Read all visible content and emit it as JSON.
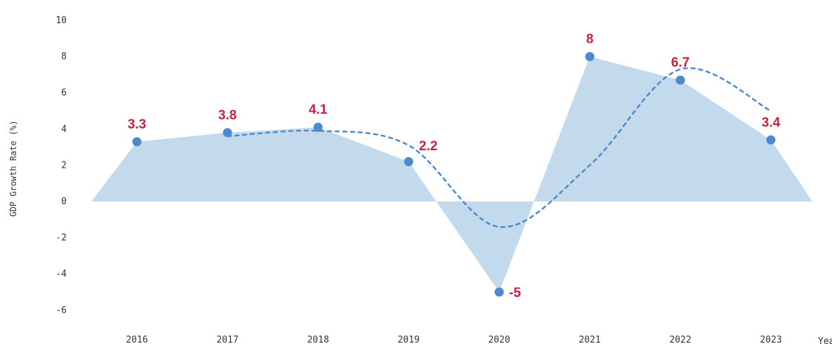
{
  "chart_data": {
    "type": "area",
    "title": "",
    "xlabel": "Year",
    "ylabel": "GDP Growth Rate (%)",
    "categories": [
      "2016",
      "2017",
      "2018",
      "2019",
      "2020",
      "2021",
      "2022",
      "2023"
    ],
    "series": [
      {
        "values": [
          3.3,
          3.8,
          4.1,
          2.2,
          -5,
          8,
          6.7,
          3.4
        ],
        "area_color": "#c3d9ec",
        "point_color": "#4a8bcf",
        "label_color": "#c8203e"
      }
    ],
    "trend_line": {
      "style": "dashed",
      "color": "#4a8bcf",
      "x": [
        "2017",
        "2018",
        "2019",
        "2020",
        "2021",
        "2022",
        "2023"
      ],
      "values": [
        3.6,
        3.9,
        3.1,
        -1.4,
        2.0,
        7.3,
        5.0
      ]
    },
    "y_ticks": [
      -6,
      -4,
      -2,
      0,
      2,
      4,
      6,
      8,
      10
    ],
    "ylim": [
      -6,
      10
    ],
    "grid": false,
    "legend": "none"
  }
}
